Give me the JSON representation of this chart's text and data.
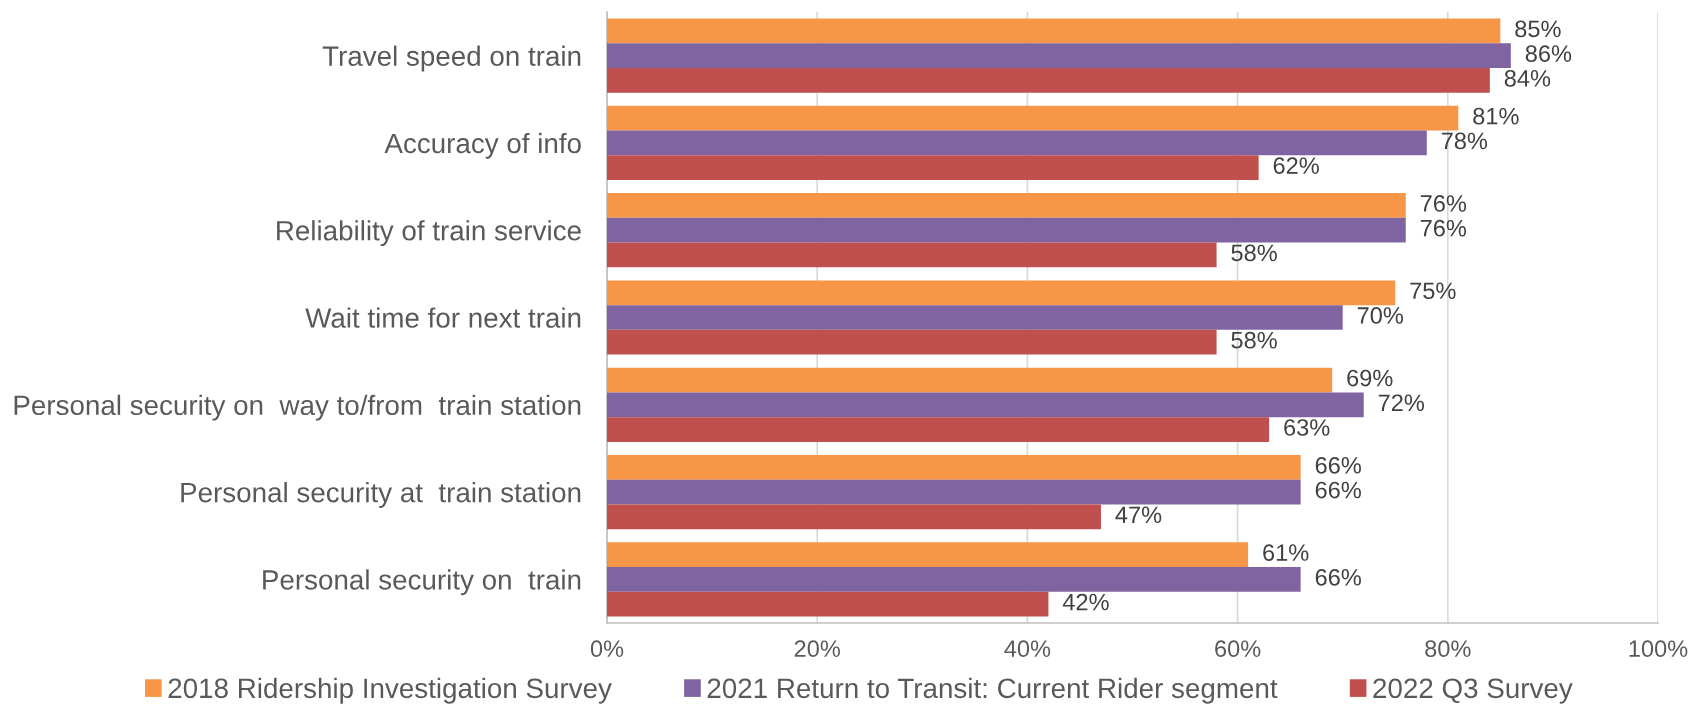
{
  "chart_data": {
    "type": "bar",
    "orientation": "horizontal",
    "categories": [
      "Travel speed on train",
      "Accuracy of info",
      "Reliability of train service",
      "Wait time for next train",
      "Personal security on  way to/from  train station",
      "Personal security at  train station",
      "Personal security on  train"
    ],
    "series": [
      {
        "name": "2018 Ridership Investigation Survey",
        "color": "#f79646",
        "values": [
          85,
          81,
          76,
          75,
          69,
          66,
          61
        ],
        "value_labels": [
          "85%",
          "81%",
          "76%",
          "75%",
          "69%",
          "66%",
          "61%"
        ]
      },
      {
        "name": "2021 Return to Transit: Current Rider segment",
        "color": "#8064a2",
        "values": [
          86,
          78,
          76,
          70,
          72,
          66,
          66
        ],
        "value_labels": [
          "86%",
          "78%",
          "76%",
          "70%",
          "72%",
          "66%",
          "66%"
        ]
      },
      {
        "name": "2022 Q3 Survey",
        "color": "#c0504d",
        "values": [
          84,
          62,
          58,
          58,
          63,
          47,
          42
        ],
        "value_labels": [
          "84%",
          "62%",
          "58%",
          "58%",
          "63%",
          "47%",
          "42%"
        ]
      }
    ],
    "xlim": [
      0,
      100
    ],
    "xticks": [
      {
        "value": 0,
        "label": "0%"
      },
      {
        "value": 20,
        "label": "20%"
      },
      {
        "value": 40,
        "label": "40%"
      },
      {
        "value": 60,
        "label": "60%"
      },
      {
        "value": 80,
        "label": "80%"
      },
      {
        "value": 100,
        "label": "100%"
      }
    ],
    "grid": "x",
    "legend": "bottom"
  }
}
